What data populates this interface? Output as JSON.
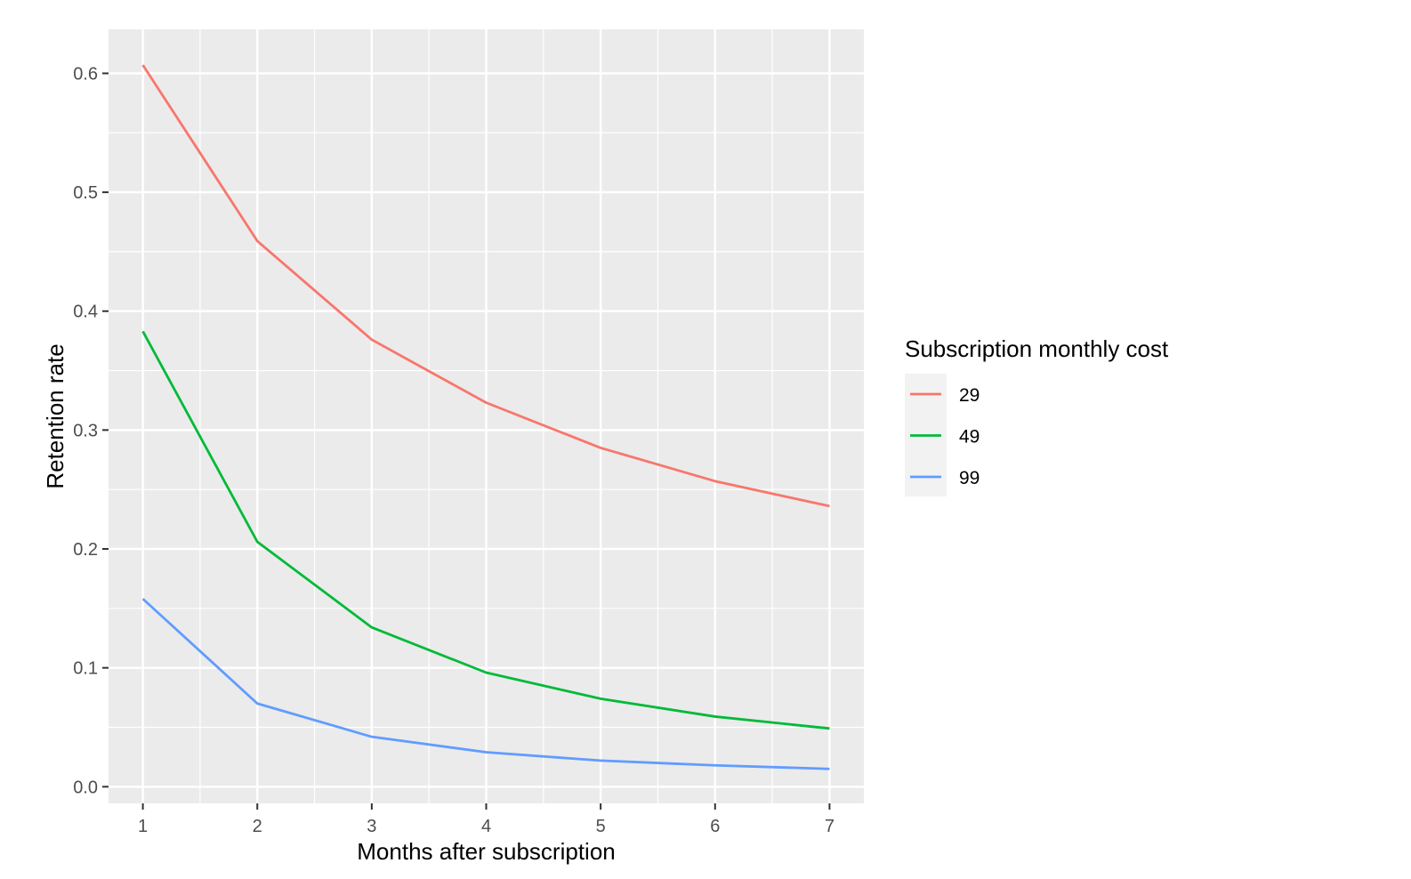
{
  "chart_data": {
    "type": "line",
    "x": [
      1,
      2,
      3,
      4,
      5,
      6,
      7
    ],
    "series": [
      {
        "name": "29",
        "color": "#F8766D",
        "values": [
          0.607,
          0.459,
          0.376,
          0.323,
          0.285,
          0.257,
          0.236
        ]
      },
      {
        "name": "49",
        "color": "#00BA38",
        "values": [
          0.383,
          0.206,
          0.134,
          0.096,
          0.074,
          0.059,
          0.049
        ]
      },
      {
        "name": "99",
        "color": "#619CFF",
        "values": [
          0.158,
          0.07,
          0.042,
          0.029,
          0.022,
          0.018,
          0.015
        ]
      }
    ],
    "xlabel": "Months after subscription",
    "ylabel": "Retention rate",
    "xlim": [
      0.7,
      7.3
    ],
    "ylim": [
      -0.014,
      0.637
    ],
    "x_ticks": [
      "1",
      "2",
      "3",
      "4",
      "5",
      "6",
      "7"
    ],
    "y_ticks": [
      "0.0",
      "0.1",
      "0.2",
      "0.3",
      "0.4",
      "0.5",
      "0.6"
    ],
    "grid": true,
    "legend": {
      "title": "Subscription monthly cost",
      "position": "right"
    },
    "panel_background": "#EBEBEB",
    "grid_color": "#FFFFFF"
  }
}
